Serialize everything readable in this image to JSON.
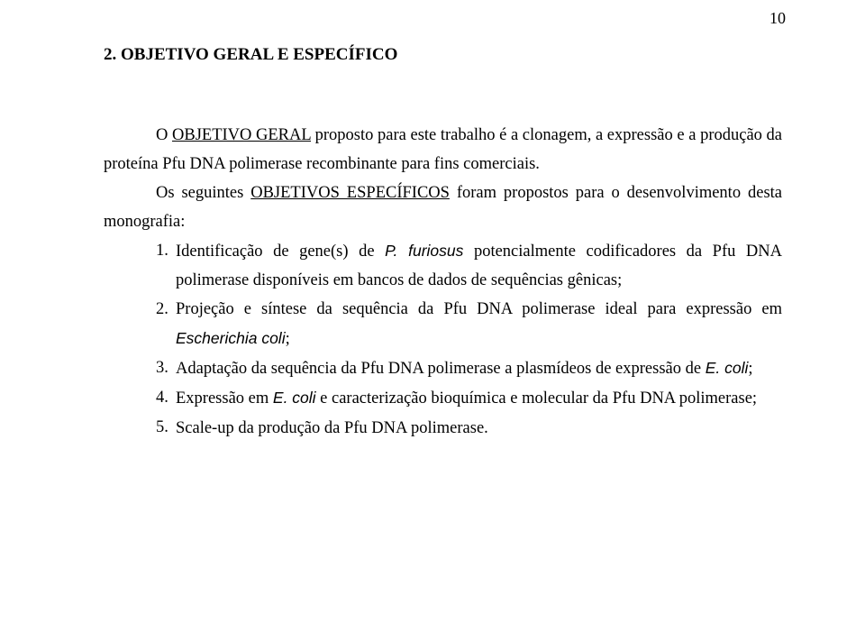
{
  "pageNumber": "10",
  "heading": "2. OBJETIVO GERAL E ESPECÍFICO",
  "para1_a": "O ",
  "para1_b": "OBJETIVO GERAL",
  "para1_c": " proposto para este trabalho é a clonagem, a expressão e a produção da proteína Pfu DNA polimerase recombinante para fins comerciais.",
  "para2_a": "Os seguintes ",
  "para2_b": "OBJETIVOS ESPECÍFICOS",
  "para2_c": " foram propostos para o desenvolvimento desta monografia:",
  "items": [
    {
      "marker": "1.",
      "a": "Identificação de gene(s) de ",
      "b": "P. furiosus",
      "c": " potencialmente codificadores da Pfu DNA polimerase disponíveis em bancos de dados de sequências gênicas;"
    },
    {
      "marker": "2.",
      "a": "Projeção e síntese da sequência da Pfu DNA polimerase ideal para expressão em ",
      "b": "Escherichia coli",
      "c": ";"
    },
    {
      "marker": "3.",
      "a": "Adaptação da sequência da Pfu DNA polimerase a plasmídeos de expressão de ",
      "b": "E. coli",
      "c": ";"
    },
    {
      "marker": "4.",
      "a": "Expressão em ",
      "b": "E. coli",
      "c": " e caracterização bioquímica e molecular da Pfu DNA polimerase;"
    },
    {
      "marker": "5.",
      "a": "Scale-up da produção da Pfu DNA polimerase.",
      "b": "",
      "c": ""
    }
  ]
}
